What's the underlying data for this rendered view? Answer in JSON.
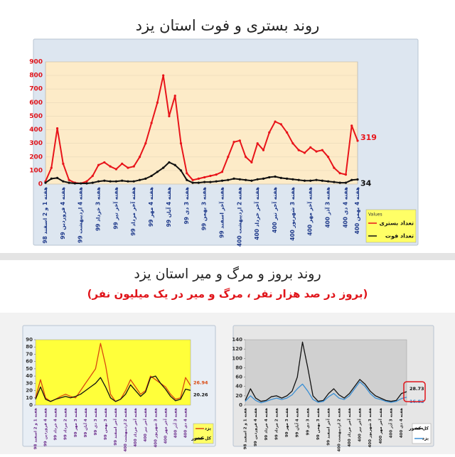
{
  "header": {
    "title": "روند بستری و فوت استان یزد"
  },
  "section": {
    "title": "روند بروز و مرگ و میر استان یزد",
    "subtitle": "(بروز در صد هزار نفر ، مرگ و میر در یک میلیون نفر)"
  },
  "chart_data": [
    {
      "type": "line",
      "grid": true,
      "legend": "bottom-right",
      "legend_title": "Values",
      "categories": [
        "هفته 1 و 2 اسفند 98",
        null,
        null,
        "هفته 4 فروردین 99",
        null,
        null,
        "هفته 4 اردیبهشت 99",
        null,
        null,
        "هفته 3 خرداد 99",
        null,
        null,
        "هفته آخر تیر 99",
        null,
        null,
        "هفته آخر مرداد 99",
        null,
        null,
        "هفته 4 مهر 99",
        null,
        null,
        "هفته 4 آبان 99",
        null,
        null,
        "هفته 3 دی 99",
        null,
        null,
        "هفته 3 بهمن 99",
        null,
        null,
        "هفته آخر اسفند 99",
        null,
        null,
        "هفته 2 اردیبهشت 400",
        null,
        null,
        "هفته آخر خرداد 400",
        null,
        null,
        "هفته آخر تیر 400",
        null,
        null,
        "هفته 3 شهریور 400",
        null,
        null,
        "هفته آخر مهر 400",
        null,
        null,
        "هفته 3 آذر 400",
        null,
        null,
        "هفته 4 دی 400",
        null,
        "هفته 4 بهمن 400"
      ],
      "ylim": [
        0,
        900
      ],
      "yticks": [
        0,
        100,
        200,
        300,
        400,
        500,
        600,
        700,
        800,
        900
      ],
      "series": [
        {
          "name": "تعداد بستری",
          "color": "#e8141a",
          "values": [
            20,
            120,
            410,
            150,
            30,
            10,
            5,
            20,
            60,
            140,
            160,
            130,
            110,
            150,
            120,
            130,
            200,
            300,
            450,
            600,
            800,
            500,
            650,
            300,
            80,
            30,
            40,
            50,
            60,
            70,
            90,
            200,
            310,
            320,
            200,
            160,
            300,
            250,
            380,
            460,
            440,
            380,
            300,
            250,
            230,
            270,
            240,
            250,
            200,
            120,
            80,
            70,
            430,
            319
          ]
        },
        {
          "name": "تعداد فوت",
          "color": "#111111",
          "values": [
            10,
            40,
            45,
            20,
            10,
            5,
            5,
            5,
            10,
            20,
            25,
            20,
            20,
            25,
            20,
            20,
            30,
            40,
            60,
            90,
            120,
            160,
            140,
            100,
            30,
            10,
            10,
            15,
            15,
            20,
            25,
            30,
            40,
            35,
            30,
            25,
            35,
            40,
            50,
            55,
            45,
            40,
            35,
            30,
            25,
            25,
            30,
            25,
            20,
            15,
            10,
            10,
            30,
            34
          ]
        }
      ]
    },
    {
      "type": "line",
      "grid": false,
      "legend": "bottom-right",
      "categories": [
        "هفته 1 و 2 اسفند 98",
        null,
        "هفته 4 فروردین 99",
        null,
        "هفته 4 خرداد 99",
        null,
        "هفته 2 مرداد 99",
        null,
        "هفته 3 مهر 99",
        null,
        "هفته 4 آبان 99",
        null,
        "هفته 3 دی 99",
        null,
        "هفته 3 بهمن 99",
        null,
        "هفته آخر اسفند 99",
        null,
        "هفته 2 اردیبهشت 400",
        null,
        "هفته آخر خرداد 400",
        null,
        "هفته آخر تیر 400",
        null,
        "هفته 3 شهریور 400",
        null,
        "هفته آخر مهر 400",
        null,
        "هفته 3 آذر 400",
        null,
        "هفته 4 دی 400",
        null
      ],
      "ylim": [
        0,
        90
      ],
      "yticks": [
        0,
        10,
        20,
        30,
        40,
        50,
        60,
        70,
        80,
        90
      ],
      "series": [
        {
          "name": "یزد",
          "color": "#d9480f",
          "values": [
            10,
            35,
            10,
            5,
            8,
            12,
            15,
            12,
            10,
            20,
            30,
            40,
            50,
            85,
            55,
            15,
            5,
            8,
            20,
            35,
            25,
            15,
            20,
            40,
            35,
            30,
            25,
            15,
            8,
            10,
            38,
            26.94
          ]
        },
        {
          "name": "کل کشور",
          "color": "#111111",
          "values": [
            8,
            25,
            8,
            5,
            8,
            10,
            12,
            10,
            12,
            15,
            20,
            25,
            30,
            38,
            25,
            10,
            5,
            8,
            15,
            28,
            20,
            12,
            18,
            38,
            40,
            30,
            22,
            12,
            6,
            8,
            22,
            20.26
          ]
        }
      ]
    },
    {
      "type": "line",
      "grid": false,
      "legend": "bottom-right",
      "categories": [
        "هفته 1 و 2 اسفند 98",
        null,
        "هفته 4 فروردین 99",
        null,
        "هفته 4 خرداد 99",
        null,
        "هفته 2 مرداد 99",
        null,
        "هفته 3 مهر 99",
        null,
        "هفته 4 آبان 99",
        null,
        "هفته 3 دی 99",
        null,
        "هفته 3 بهمن 99",
        null,
        "هفته آخر اسفند 99",
        null,
        "هفته 2 اردیبهشت 400",
        null,
        "هفته آخر خرداد 400",
        null,
        "هفته آخر تیر 400",
        null,
        "هفته 3 شهریور 400",
        null,
        "هفته آخر مهر 400",
        null,
        "هفته 3 آذر 400",
        null,
        "هفته 4 دی 400",
        null
      ],
      "ylim": [
        0,
        140
      ],
      "yticks": [
        0,
        20,
        40,
        60,
        80,
        100,
        120,
        140
      ],
      "series": [
        {
          "name": "کل کشور",
          "color": "#111111",
          "values": [
            10,
            35,
            15,
            8,
            10,
            18,
            20,
            15,
            20,
            30,
            60,
            135,
            80,
            20,
            8,
            10,
            25,
            35,
            22,
            15,
            25,
            40,
            55,
            45,
            30,
            20,
            15,
            10,
            8,
            10,
            25,
            28.73
          ]
        },
        {
          "name": "یزد",
          "color": "#3a8fd4",
          "values": [
            8,
            20,
            10,
            5,
            8,
            12,
            15,
            12,
            15,
            22,
            35,
            45,
            30,
            12,
            6,
            8,
            18,
            25,
            15,
            12,
            20,
            35,
            50,
            40,
            25,
            15,
            12,
            8,
            6,
            8,
            14,
            16.82
          ]
        }
      ]
    }
  ]
}
